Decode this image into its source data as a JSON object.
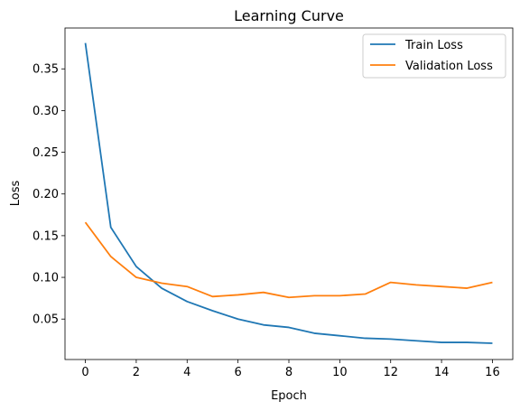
{
  "chart_data": {
    "type": "line",
    "title": "Learning Curve",
    "xlabel": "Epoch",
    "ylabel": "Loss",
    "x": [
      0,
      1,
      2,
      3,
      4,
      5,
      6,
      7,
      8,
      9,
      10,
      11,
      12,
      13,
      14,
      15,
      16
    ],
    "xlim": [
      -0.8,
      16.8
    ],
    "ylim": [
      0.0015,
      0.399
    ],
    "xticks": [
      0,
      2,
      4,
      6,
      8,
      10,
      12,
      14,
      16
    ],
    "xtick_labels": [
      "0",
      "2",
      "4",
      "6",
      "8",
      "10",
      "12",
      "14",
      "16"
    ],
    "yticks": [
      0.05,
      0.1,
      0.15,
      0.2,
      0.25,
      0.3,
      0.35
    ],
    "ytick_labels": [
      "0.05",
      "0.10",
      "0.15",
      "0.20",
      "0.25",
      "0.30",
      "0.35"
    ],
    "grid": false,
    "legend_position": "top-right",
    "series": [
      {
        "name": "Train Loss",
        "color": "#1f77b4",
        "values": [
          0.381,
          0.16,
          0.113,
          0.087,
          0.071,
          0.06,
          0.05,
          0.043,
          0.04,
          0.033,
          0.03,
          0.027,
          0.026,
          0.024,
          0.022,
          0.022,
          0.021
        ]
      },
      {
        "name": "Validation Loss",
        "color": "#ff7f0e",
        "values": [
          0.166,
          0.125,
          0.1,
          0.093,
          0.089,
          0.077,
          0.079,
          0.082,
          0.076,
          0.078,
          0.078,
          0.08,
          0.094,
          0.091,
          0.089,
          0.087,
          0.094
        ]
      }
    ]
  }
}
